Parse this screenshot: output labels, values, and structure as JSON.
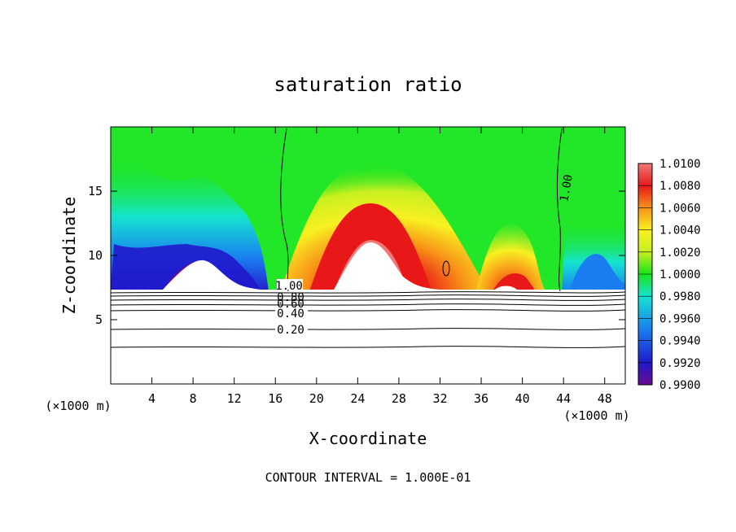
{
  "chart_data": {
    "type": "heatmap",
    "title": "saturation ratio",
    "xlabel": "X-coordinate",
    "ylabel": "Z-coordinate",
    "x_unit": "(×1000 m)",
    "y_unit": "(×1000 m)",
    "xlim": [
      0,
      50
    ],
    "ylim": [
      0,
      20
    ],
    "x_ticks": [
      "4",
      "8",
      "12",
      "16",
      "20",
      "24",
      "28",
      "32",
      "36",
      "40",
      "44",
      "48"
    ],
    "y_ticks": [
      "5",
      "10",
      "15"
    ],
    "footer": "CONTOUR INTERVAL = 1.000E-01",
    "colorbar": {
      "min": 0.99,
      "max": 1.01,
      "labels": [
        "1.0100",
        "1.0080",
        "1.0060",
        "1.0040",
        "1.0020",
        "1.0000",
        "0.9980",
        "0.9960",
        "0.9940",
        "0.9920",
        "0.9900"
      ]
    },
    "contour_labels": [
      {
        "text": "1.00",
        "x": 18.6,
        "z": 7.5
      },
      {
        "text": "1.00",
        "x": 44.1,
        "z": 15.3
      },
      {
        "text": "0.80",
        "x": 17.7,
        "z": 6.7
      },
      {
        "text": "0.60",
        "x": 17.7,
        "z": 6.1
      },
      {
        "text": "0.40",
        "x": 17.7,
        "z": 5.5
      },
      {
        "text": "0.20",
        "x": 17.7,
        "z": 4.1
      }
    ],
    "cloud_base_z": 7.3,
    "colors": {
      "purple": "#6a0a8f",
      "deep_blue": "#2018cc",
      "blue": "#1a7ef0",
      "cyan": "#14e4d0",
      "green": "#18e418",
      "yellow_green": "#c8f020",
      "yellow": "#f8f020",
      "orange": "#f89018",
      "red": "#e81818",
      "pink": "#f07878"
    }
  }
}
